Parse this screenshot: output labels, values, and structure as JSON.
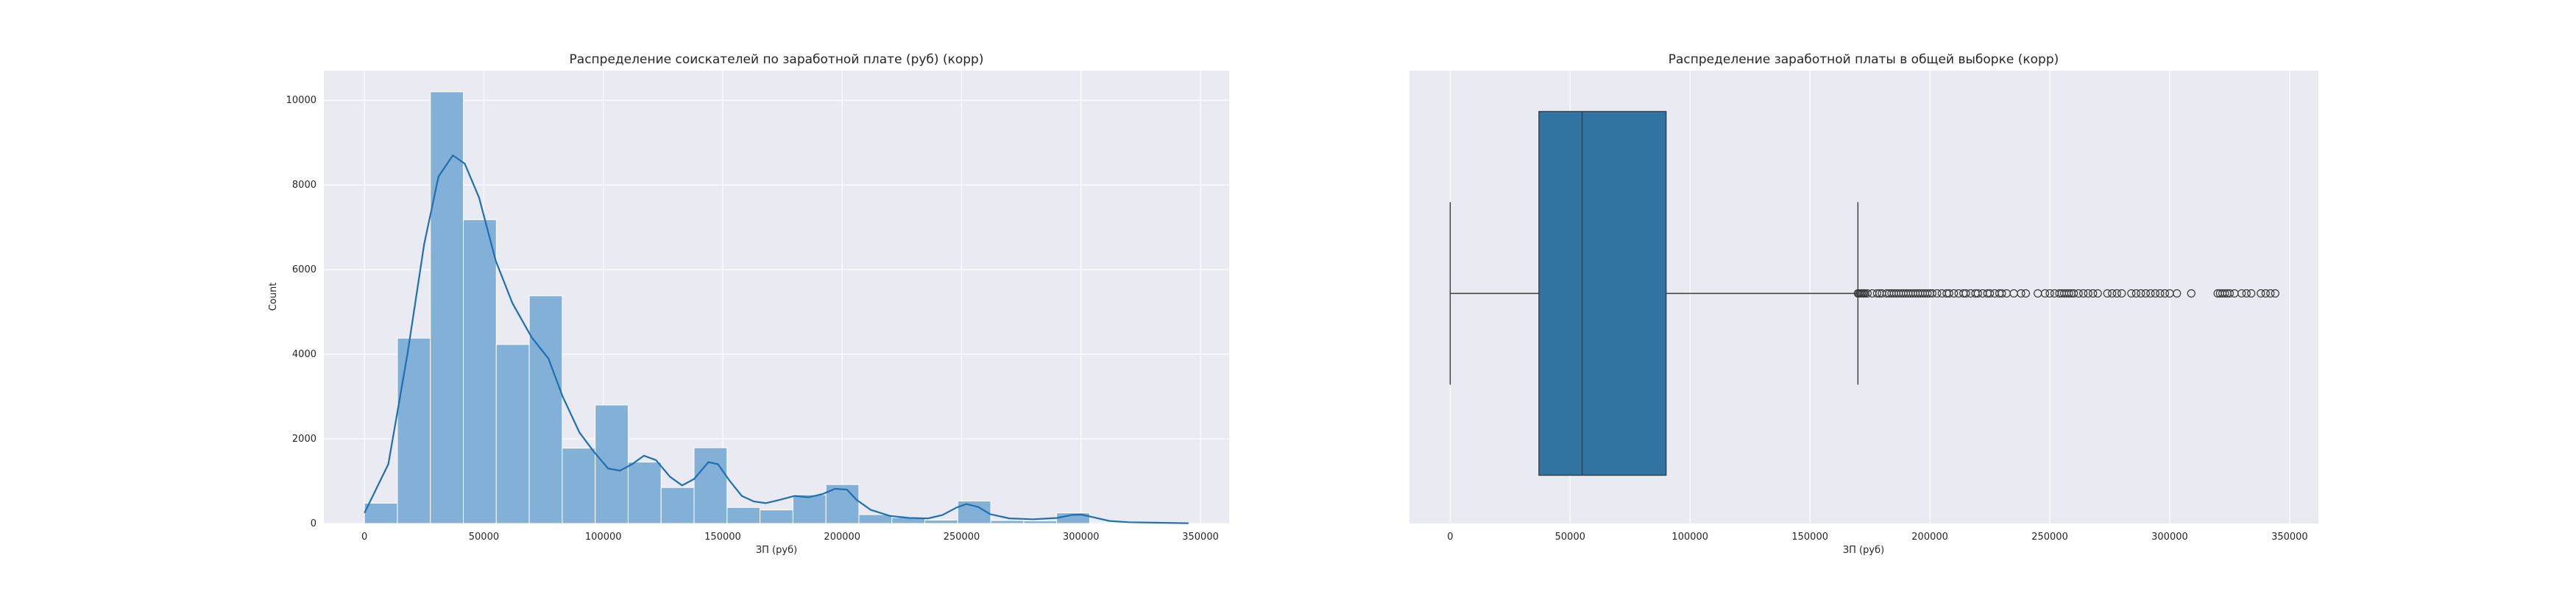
{
  "chart_data": [
    {
      "type": "bar",
      "subtype": "histogram_with_kde",
      "title": "Распределение соискателей по заработной плате (руб) (корр)",
      "xlabel": "ЗП (руб)",
      "ylabel": "Count",
      "xlim": [
        -17000,
        362000
      ],
      "ylim": [
        0,
        10700
      ],
      "xticks": [
        0,
        50000,
        100000,
        150000,
        200000,
        250000,
        300000,
        350000
      ],
      "yticks": [
        0,
        2000,
        4000,
        6000,
        8000,
        10000
      ],
      "grid": true,
      "bin_width": 13800,
      "bins": [
        {
          "start": 0,
          "value": 480
        },
        {
          "start": 13800,
          "value": 4380
        },
        {
          "start": 27600,
          "value": 10200
        },
        {
          "start": 41400,
          "value": 7180
        },
        {
          "start": 55200,
          "value": 4230
        },
        {
          "start": 69000,
          "value": 5380
        },
        {
          "start": 82800,
          "value": 1780
        },
        {
          "start": 96600,
          "value": 2800
        },
        {
          "start": 110400,
          "value": 1450
        },
        {
          "start": 124200,
          "value": 850
        },
        {
          "start": 138000,
          "value": 1790
        },
        {
          "start": 151800,
          "value": 380
        },
        {
          "start": 165600,
          "value": 320
        },
        {
          "start": 179400,
          "value": 680
        },
        {
          "start": 193200,
          "value": 920
        },
        {
          "start": 207000,
          "value": 210
        },
        {
          "start": 220800,
          "value": 140
        },
        {
          "start": 234600,
          "value": 80
        },
        {
          "start": 248400,
          "value": 530
        },
        {
          "start": 262200,
          "value": 70
        },
        {
          "start": 276000,
          "value": 60
        },
        {
          "start": 289800,
          "value": 250
        },
        {
          "start": 303600,
          "value": 20
        },
        {
          "start": 317400,
          "value": 10
        },
        {
          "start": 331200,
          "value": 10
        }
      ],
      "kde": [
        [
          0,
          250
        ],
        [
          10000,
          1400
        ],
        [
          18000,
          4000
        ],
        [
          25000,
          6600
        ],
        [
          31000,
          8200
        ],
        [
          37000,
          8700
        ],
        [
          42000,
          8500
        ],
        [
          48000,
          7700
        ],
        [
          55000,
          6200
        ],
        [
          62000,
          5200
        ],
        [
          70000,
          4400
        ],
        [
          77000,
          3900
        ],
        [
          83000,
          3000
        ],
        [
          90000,
          2150
        ],
        [
          96000,
          1700
        ],
        [
          102000,
          1300
        ],
        [
          107000,
          1250
        ],
        [
          112000,
          1400
        ],
        [
          117000,
          1600
        ],
        [
          122000,
          1500
        ],
        [
          128000,
          1100
        ],
        [
          133000,
          900
        ],
        [
          138000,
          1050
        ],
        [
          144000,
          1450
        ],
        [
          148000,
          1400
        ],
        [
          153000,
          1000
        ],
        [
          158000,
          650
        ],
        [
          163000,
          520
        ],
        [
          168000,
          480
        ],
        [
          174000,
          560
        ],
        [
          180000,
          650
        ],
        [
          186000,
          620
        ],
        [
          192000,
          700
        ],
        [
          197000,
          820
        ],
        [
          202000,
          800
        ],
        [
          206000,
          560
        ],
        [
          212000,
          320
        ],
        [
          220000,
          180
        ],
        [
          228000,
          130
        ],
        [
          236000,
          120
        ],
        [
          242000,
          200
        ],
        [
          248000,
          380
        ],
        [
          252000,
          460
        ],
        [
          257000,
          390
        ],
        [
          262000,
          220
        ],
        [
          270000,
          120
        ],
        [
          280000,
          100
        ],
        [
          290000,
          130
        ],
        [
          296000,
          200
        ],
        [
          300000,
          210
        ],
        [
          305000,
          150
        ],
        [
          312000,
          60
        ],
        [
          320000,
          30
        ],
        [
          335000,
          15
        ],
        [
          345000,
          5
        ]
      ]
    },
    {
      "type": "boxplot",
      "title": "Распределение заработной платы в общей выборке (корр)",
      "xlabel": "ЗП (руб)",
      "xlim": [
        -17000,
        362000
      ],
      "xticks": [
        0,
        50000,
        100000,
        150000,
        200000,
        250000,
        300000,
        350000
      ],
      "grid": true,
      "box": {
        "whisker_low": 0,
        "q1": 37000,
        "median": 55000,
        "q3": 90000,
        "whisker_high": 170000
      },
      "outliers": [
        170000,
        170500,
        171000,
        171500,
        172000,
        172500,
        173000,
        174000,
        176000,
        178000,
        179000,
        180000,
        182000,
        183000,
        184000,
        185000,
        186000,
        187000,
        188000,
        189000,
        190000,
        191000,
        192000,
        193000,
        194000,
        195000,
        196000,
        197000,
        198000,
        199000,
        200000,
        201000,
        203000,
        205000,
        207000,
        208000,
        210000,
        212000,
        214000,
        215000,
        217000,
        219000,
        220000,
        222000,
        224000,
        225000,
        227000,
        229000,
        230000,
        232000,
        235000,
        238000,
        240000,
        245000,
        248000,
        250000,
        252000,
        254000,
        255000,
        256000,
        257000,
        258000,
        259000,
        260000,
        262000,
        264000,
        266000,
        268000,
        270000,
        274000,
        276000,
        278000,
        280000,
        284000,
        286000,
        288000,
        290000,
        292000,
        294000,
        296000,
        298000,
        300000,
        303000,
        309000,
        320000,
        321000,
        322000,
        323000,
        324000,
        325000,
        327000,
        330000,
        332000,
        334000,
        338000,
        340000,
        342000,
        344000
      ],
      "colors": {
        "box": "#3274a1",
        "edge": "#3a3a3a"
      }
    }
  ],
  "colors": {
    "bar": "#82b0d6",
    "kde": "#1f6fb2",
    "panel": "#eaeaf2",
    "grid": "#ffffff"
  }
}
